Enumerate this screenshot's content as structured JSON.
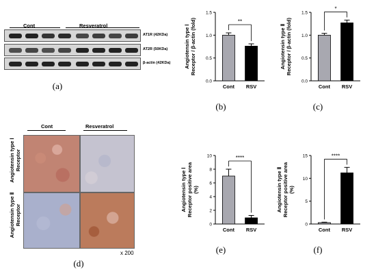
{
  "blot": {
    "group_left": "Cont",
    "group_right": "Resveratrol",
    "rows": [
      {
        "label": "AT1R (42KDa)"
      },
      {
        "label": "AT2R (50KDa)"
      },
      {
        "label": "β-actin (42KDa)"
      }
    ],
    "panel_label": "(a)"
  },
  "micro": {
    "col_left": "Cont",
    "col_right": "Resveratrol",
    "row_top": "Angiotensin type Ⅰ Receptor",
    "row_bottom": "Angiotensin type Ⅱ Receptor",
    "magnification": "x 200",
    "panel_label": "(d)",
    "colors": {
      "brown": "#b5715a",
      "pale": "#c9c6d2",
      "purple_blue": "#9fa6c4"
    }
  },
  "chart_data": [
    {
      "id": "b",
      "type": "bar",
      "panel_label": "(b)",
      "categories": [
        "Cont",
        "RSV"
      ],
      "values": [
        1.0,
        0.76
      ],
      "errors": [
        0.05,
        0.05
      ],
      "colors": [
        "#a8a8b0",
        "#000000"
      ],
      "ylabel_lines": [
        "Angiotensin type Ⅰ",
        "Receptor / β-actin (fold)"
      ],
      "ylim": [
        0,
        1.5
      ],
      "yticks": [
        0.0,
        0.5,
        1.0,
        1.5
      ],
      "ytick_labels": [
        "0.0",
        "0.5",
        "1.0",
        "1.5"
      ],
      "significance": "**"
    },
    {
      "id": "c",
      "type": "bar",
      "panel_label": "(c)",
      "categories": [
        "Cont",
        "RSV"
      ],
      "values": [
        1.0,
        1.27
      ],
      "errors": [
        0.04,
        0.06
      ],
      "colors": [
        "#a8a8b0",
        "#000000"
      ],
      "ylabel_lines": [
        "Angiotensin type Ⅱ",
        "Receptor / β-actin (fold)"
      ],
      "ylim": [
        0,
        1.5
      ],
      "yticks": [
        0.0,
        0.5,
        1.0,
        1.5
      ],
      "ytick_labels": [
        "0.0",
        "0.5",
        "1.0",
        "1.5"
      ],
      "significance": "*"
    },
    {
      "id": "e",
      "type": "bar",
      "panel_label": "(e)",
      "categories": [
        "Cont",
        "RSV"
      ],
      "values": [
        7.0,
        0.9
      ],
      "errors": [
        1.0,
        0.35
      ],
      "colors": [
        "#a8a8b0",
        "#000000"
      ],
      "ylabel_lines": [
        "Angiotensin type Ⅰ",
        "Receptor positive area",
        "(%)"
      ],
      "ylim": [
        0,
        10
      ],
      "yticks": [
        0,
        2,
        4,
        6,
        8,
        10
      ],
      "ytick_labels": [
        "0",
        "2",
        "4",
        "6",
        "8",
        "10"
      ],
      "significance": "****"
    },
    {
      "id": "f",
      "type": "bar",
      "panel_label": "(f)",
      "categories": [
        "Cont",
        "RSV"
      ],
      "values": [
        0.3,
        11.2
      ],
      "errors": [
        0.1,
        1.2
      ],
      "colors": [
        "#a8a8b0",
        "#000000"
      ],
      "ylabel_lines": [
        "Angiotensin type Ⅱ",
        "Receptor positive area",
        "(%)"
      ],
      "ylim": [
        0,
        15
      ],
      "yticks": [
        0,
        5,
        10,
        15
      ],
      "ytick_labels": [
        "0",
        "5",
        "10",
        "15"
      ],
      "significance": "****"
    }
  ]
}
